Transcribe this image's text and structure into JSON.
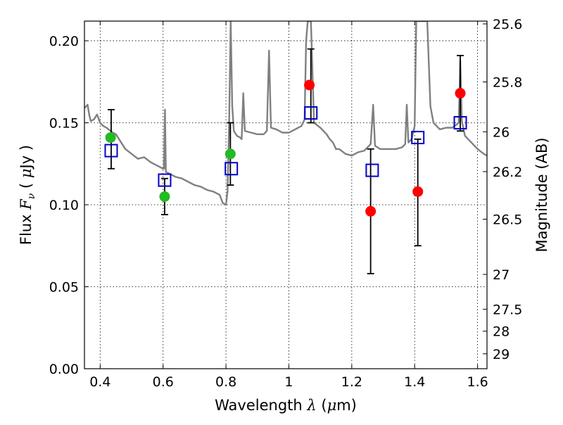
{
  "chart_data": {
    "type": "scatter",
    "title": "",
    "xlabel": "Wavelength  λ (μm)",
    "ylabel": "Flux  Fν  ( μJy )",
    "y2label": "Magnitude (AB)",
    "xlim": [
      0.35,
      1.63
    ],
    "ylim": [
      0.0,
      0.212
    ],
    "grid": true,
    "x_ticks": [
      {
        "value": 0.4,
        "label": "0.4"
      },
      {
        "value": 0.6,
        "label": "0.6"
      },
      {
        "value": 0.8,
        "label": "0.8"
      },
      {
        "value": 1.0,
        "label": "1"
      },
      {
        "value": 1.2,
        "label": "1.2"
      },
      {
        "value": 1.4,
        "label": "1.4"
      },
      {
        "value": 1.6,
        "label": "1.6"
      }
    ],
    "y_ticks": [
      {
        "value": 0.0,
        "label": "0.00"
      },
      {
        "value": 0.05,
        "label": "0.05"
      },
      {
        "value": 0.1,
        "label": "0.10"
      },
      {
        "value": 0.15,
        "label": "0.15"
      },
      {
        "value": 0.2,
        "label": "0.20"
      }
    ],
    "y2_ticks": [
      {
        "flux": 0.2103,
        "label": "25.6"
      },
      {
        "flux": 0.1749,
        "label": "25.8"
      },
      {
        "flux": 0.1445,
        "label": "26"
      },
      {
        "flux": 0.1202,
        "label": "26.2"
      },
      {
        "flux": 0.0912,
        "label": "26.5"
      },
      {
        "flux": 0.0575,
        "label": "27"
      },
      {
        "flux": 0.0363,
        "label": "27.5"
      },
      {
        "flux": 0.0229,
        "label": "28"
      },
      {
        "flux": 0.0091,
        "label": "29"
      }
    ],
    "series": [
      {
        "kind": "line",
        "color": "#808080",
        "points": [
          [
            0.35,
            0.159
          ],
          [
            0.36,
            0.161
          ],
          [
            0.365,
            0.155
          ],
          [
            0.37,
            0.151
          ],
          [
            0.38,
            0.152
          ],
          [
            0.39,
            0.155
          ],
          [
            0.4,
            0.15
          ],
          [
            0.41,
            0.148
          ],
          [
            0.42,
            0.147
          ],
          [
            0.44,
            0.144
          ],
          [
            0.45,
            0.143
          ],
          [
            0.46,
            0.14
          ],
          [
            0.48,
            0.134
          ],
          [
            0.5,
            0.131
          ],
          [
            0.52,
            0.128
          ],
          [
            0.54,
            0.129
          ],
          [
            0.56,
            0.126
          ],
          [
            0.58,
            0.124
          ],
          [
            0.6,
            0.122
          ],
          [
            0.603,
            0.122
          ],
          [
            0.606,
            0.158
          ],
          [
            0.609,
            0.12
          ],
          [
            0.62,
            0.119
          ],
          [
            0.64,
            0.117
          ],
          [
            0.66,
            0.116
          ],
          [
            0.68,
            0.114
          ],
          [
            0.7,
            0.112
          ],
          [
            0.72,
            0.111
          ],
          [
            0.74,
            0.109
          ],
          [
            0.76,
            0.108
          ],
          [
            0.78,
            0.106
          ],
          [
            0.79,
            0.101
          ],
          [
            0.8,
            0.1
          ],
          [
            0.805,
            0.108
          ],
          [
            0.81,
            0.15
          ],
          [
            0.815,
            0.212
          ],
          [
            0.82,
            0.16
          ],
          [
            0.825,
            0.145
          ],
          [
            0.835,
            0.142
          ],
          [
            0.845,
            0.141
          ],
          [
            0.85,
            0.14
          ],
          [
            0.855,
            0.168
          ],
          [
            0.86,
            0.145
          ],
          [
            0.88,
            0.144
          ],
          [
            0.9,
            0.143
          ],
          [
            0.92,
            0.143
          ],
          [
            0.93,
            0.145
          ],
          [
            0.937,
            0.194
          ],
          [
            0.943,
            0.147
          ],
          [
            0.96,
            0.146
          ],
          [
            0.98,
            0.144
          ],
          [
            1.0,
            0.144
          ],
          [
            1.02,
            0.146
          ],
          [
            1.04,
            0.148
          ],
          [
            1.05,
            0.152
          ],
          [
            1.055,
            0.2
          ],
          [
            1.06,
            0.212
          ],
          [
            1.065,
            0.212
          ],
          [
            1.07,
            0.212
          ],
          [
            1.08,
            0.15
          ],
          [
            1.1,
            0.147
          ],
          [
            1.12,
            0.143
          ],
          [
            1.13,
            0.14
          ],
          [
            1.14,
            0.138
          ],
          [
            1.15,
            0.134
          ],
          [
            1.16,
            0.134
          ],
          [
            1.18,
            0.131
          ],
          [
            1.2,
            0.13
          ],
          [
            1.22,
            0.132
          ],
          [
            1.24,
            0.133
          ],
          [
            1.25,
            0.135
          ],
          [
            1.26,
            0.137
          ],
          [
            1.268,
            0.161
          ],
          [
            1.274,
            0.136
          ],
          [
            1.29,
            0.134
          ],
          [
            1.3,
            0.134
          ],
          [
            1.32,
            0.134
          ],
          [
            1.34,
            0.134
          ],
          [
            1.36,
            0.135
          ],
          [
            1.37,
            0.137
          ],
          [
            1.375,
            0.161
          ],
          [
            1.38,
            0.138
          ],
          [
            1.39,
            0.14
          ],
          [
            1.4,
            0.148
          ],
          [
            1.405,
            0.212
          ],
          [
            1.42,
            0.212
          ],
          [
            1.43,
            0.212
          ],
          [
            1.44,
            0.212
          ],
          [
            1.45,
            0.16
          ],
          [
            1.46,
            0.15
          ],
          [
            1.48,
            0.146
          ],
          [
            1.5,
            0.147
          ],
          [
            1.52,
            0.147
          ],
          [
            1.54,
            0.15
          ],
          [
            1.545,
            0.188
          ],
          [
            1.55,
            0.151
          ],
          [
            1.56,
            0.142
          ],
          [
            1.58,
            0.138
          ],
          [
            1.6,
            0.134
          ],
          [
            1.62,
            0.131
          ],
          [
            1.63,
            0.13
          ]
        ]
      },
      {
        "kind": "markers",
        "marker": "circle",
        "color": "#22bb22",
        "points": [
          [
            0.433,
            0.141
          ],
          [
            0.605,
            0.105
          ],
          [
            0.814,
            0.131
          ]
        ]
      },
      {
        "kind": "markers",
        "marker": "circle",
        "color": "#ff0000",
        "points": [
          [
            1.065,
            0.173
          ],
          [
            1.26,
            0.096
          ],
          [
            1.41,
            0.108
          ],
          [
            1.545,
            0.168
          ]
        ]
      },
      {
        "kind": "markers",
        "marker": "square",
        "color": "#0000cc",
        "points": [
          [
            0.435,
            0.133
          ],
          [
            0.605,
            0.115
          ],
          [
            0.817,
            0.122
          ],
          [
            1.07,
            0.156
          ],
          [
            1.265,
            0.121
          ],
          [
            1.41,
            0.141
          ],
          [
            1.545,
            0.15
          ]
        ]
      }
    ],
    "errorbars": [
      {
        "x": 0.435,
        "low": 0.122,
        "high": 0.158
      },
      {
        "x": 0.605,
        "low": 0.094,
        "high": 0.116
      },
      {
        "x": 0.814,
        "low": 0.112,
        "high": 0.15
      },
      {
        "x": 1.07,
        "low": 0.15,
        "high": 0.195
      },
      {
        "x": 1.26,
        "low": 0.058,
        "high": 0.134
      },
      {
        "x": 1.41,
        "low": 0.075,
        "high": 0.14
      },
      {
        "x": 1.545,
        "low": 0.145,
        "high": 0.191
      }
    ]
  }
}
